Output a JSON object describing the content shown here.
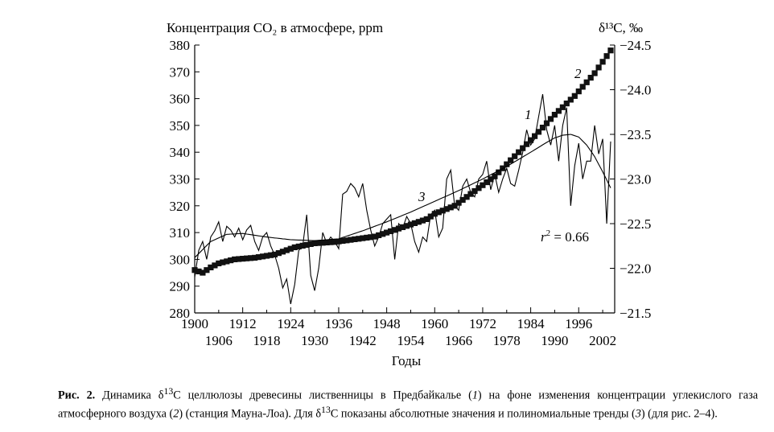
{
  "chart_data": {
    "type": "line",
    "title_left": "Концентрация CO₂ в атмосфере, ppm",
    "title_right": "δ¹³C, ‰",
    "xlabel": "Годы",
    "x_ticks_top": [
      "1900",
      "1912",
      "1924",
      "1936",
      "1948",
      "1960",
      "1972",
      "1984",
      "1996"
    ],
    "x_ticks_bottom": [
      "1906",
      "1918",
      "1930",
      "1942",
      "1954",
      "1966",
      "1978",
      "1990",
      "2002"
    ],
    "xlim": [
      1900,
      2005
    ],
    "ylim_left": [
      280,
      380
    ],
    "yticks_left": [
      "280",
      "290",
      "300",
      "310",
      "320",
      "330",
      "340",
      "350",
      "360",
      "370",
      "380"
    ],
    "ylim_right": [
      -21.5,
      -24.5
    ],
    "yticks_right": [
      "−21.5",
      "−22.0",
      "−22.5",
      "−23.0",
      "−23.5",
      "−24.0",
      "−24.5"
    ],
    "annotations": {
      "series1": "1",
      "series2": "2",
      "series3": "3",
      "r2_prefix": "r",
      "r2_exp": "2",
      "r2_value": " = 0.66"
    },
    "series": [
      {
        "id": "1",
        "style": "thin-line",
        "axis": "right",
        "x": [
          1900,
          1901,
          1902,
          1903,
          1904,
          1905,
          1906,
          1907,
          1908,
          1909,
          1910,
          1911,
          1912,
          1913,
          1914,
          1915,
          1916,
          1917,
          1918,
          1919,
          1920,
          1921,
          1922,
          1923,
          1924,
          1925,
          1926,
          1927,
          1928,
          1929,
          1930,
          1931,
          1932,
          1933,
          1934,
          1935,
          1936,
          1937,
          1938,
          1939,
          1940,
          1941,
          1942,
          1943,
          1944,
          1945,
          1946,
          1947,
          1948,
          1949,
          1950,
          1951,
          1952,
          1953,
          1954,
          1955,
          1956,
          1957,
          1958,
          1959,
          1960,
          1961,
          1962,
          1963,
          1964,
          1965,
          1966,
          1967,
          1968,
          1969,
          1970,
          1971,
          1972,
          1973,
          1974,
          1975,
          1976,
          1977,
          1978,
          1979,
          1980,
          1981,
          1982,
          1983,
          1984,
          1985,
          1986,
          1987,
          1988,
          1989,
          1990,
          1991,
          1992,
          1993,
          1994,
          1995,
          1996,
          1997,
          1998,
          1999,
          2000,
          2001,
          2002,
          2003,
          2004
        ],
        "y": [
          -21.9,
          -22.2,
          -22.3,
          -22.1,
          -22.35,
          -22.42,
          -22.52,
          -22.3,
          -22.47,
          -22.43,
          -22.35,
          -22.45,
          -22.32,
          -22.43,
          -22.48,
          -22.3,
          -22.2,
          -22.35,
          -22.4,
          -22.25,
          -22.15,
          -22.0,
          -21.78,
          -21.88,
          -21.6,
          -21.82,
          -22.2,
          -22.25,
          -22.6,
          -21.92,
          -21.75,
          -22.0,
          -22.4,
          -22.28,
          -22.35,
          -22.3,
          -22.22,
          -22.83,
          -22.86,
          -22.95,
          -22.9,
          -22.8,
          -22.95,
          -22.65,
          -22.43,
          -22.25,
          -22.35,
          -22.5,
          -22.55,
          -22.6,
          -22.1,
          -22.5,
          -22.45,
          -22.58,
          -22.5,
          -22.3,
          -22.18,
          -22.35,
          -22.3,
          -22.6,
          -22.65,
          -22.35,
          -22.45,
          -23.0,
          -23.1,
          -22.7,
          -22.65,
          -22.92,
          -23.0,
          -22.85,
          -22.8,
          -23.0,
          -23.05,
          -23.2,
          -22.88,
          -23.05,
          -22.85,
          -23.0,
          -23.12,
          -22.95,
          -22.92,
          -23.1,
          -23.3,
          -23.55,
          -23.38,
          -23.45,
          -23.7,
          -23.95,
          -23.55,
          -23.38,
          -23.6,
          -23.2,
          -23.6,
          -23.8,
          -22.7,
          -23.15,
          -23.4,
          -23.0,
          -23.2,
          -23.2,
          -23.6,
          -23.28,
          -23.45,
          -22.5,
          -23.42
        ],
        "points": [
          [
            1900,
            -21.9
          ],
          [
            1901,
            -22.2
          ],
          [
            1902,
            -22.3
          ],
          [
            1903,
            -22.1
          ],
          [
            1904,
            -22.35
          ],
          [
            1905,
            -22.42
          ],
          [
            1906,
            -22.52
          ],
          [
            1907,
            -22.3
          ],
          [
            1908,
            -22.47
          ],
          [
            1909,
            -22.43
          ],
          [
            1910,
            -22.35
          ],
          [
            1911,
            -22.45
          ],
          [
            1912,
            -22.32
          ],
          [
            1913,
            -22.43
          ],
          [
            1914,
            -22.48
          ],
          [
            1915,
            -22.3
          ],
          [
            1916,
            -22.2
          ],
          [
            1917,
            -22.35
          ],
          [
            1918,
            -22.4
          ],
          [
            1919,
            -22.25
          ],
          [
            1920,
            -22.15
          ],
          [
            1921,
            -22.0
          ],
          [
            1922,
            -21.78
          ],
          [
            1923,
            -21.88
          ],
          [
            1924,
            -21.6
          ],
          [
            1925,
            -21.82
          ],
          [
            1926,
            -22.2
          ],
          [
            1927,
            -22.25
          ],
          [
            1928,
            -22.6
          ],
          [
            1929,
            -21.92
          ],
          [
            1930,
            -21.75
          ],
          [
            1931,
            -22.0
          ],
          [
            1932,
            -22.4
          ],
          [
            1933,
            -22.28
          ],
          [
            1934,
            -22.35
          ],
          [
            1935,
            -22.3
          ],
          [
            1936,
            -22.22
          ],
          [
            1937,
            -22.83
          ],
          [
            1938,
            -22.86
          ],
          [
            1939,
            -22.95
          ],
          [
            1940,
            -22.9
          ],
          [
            1941,
            -22.8
          ],
          [
            1942,
            -22.95
          ],
          [
            1943,
            -22.65
          ],
          [
            1944,
            -22.43
          ],
          [
            1945,
            -22.25
          ],
          [
            1946,
            -22.35
          ],
          [
            1947,
            -22.5
          ],
          [
            1948,
            -22.55
          ],
          [
            1949,
            -22.6
          ],
          [
            1950,
            -22.1
          ],
          [
            1951,
            -22.5
          ],
          [
            1952,
            -22.45
          ],
          [
            1953,
            -22.58
          ],
          [
            1954,
            -22.5
          ],
          [
            1955,
            -22.3
          ],
          [
            1956,
            -22.18
          ],
          [
            1957,
            -22.35
          ],
          [
            1958,
            -22.3
          ],
          [
            1959,
            -22.6
          ],
          [
            1960,
            -22.65
          ],
          [
            1961,
            -22.35
          ],
          [
            1962,
            -22.45
          ],
          [
            1963,
            -23.0
          ],
          [
            1964,
            -23.1
          ],
          [
            1965,
            -22.7
          ],
          [
            1966,
            -22.65
          ],
          [
            1967,
            -22.92
          ],
          [
            1968,
            -23.0
          ],
          [
            1969,
            -22.85
          ],
          [
            1970,
            -22.8
          ],
          [
            1971,
            -23.0
          ],
          [
            1972,
            -23.05
          ],
          [
            1973,
            -23.2
          ],
          [
            1974,
            -22.88
          ],
          [
            1975,
            -23.05
          ],
          [
            1976,
            -22.85
          ],
          [
            1977,
            -23.0
          ],
          [
            1978,
            -23.12
          ],
          [
            1979,
            -22.95
          ],
          [
            1980,
            -22.92
          ],
          [
            1981,
            -23.1
          ],
          [
            1982,
            -23.3
          ],
          [
            1983,
            -23.55
          ],
          [
            1984,
            -23.38
          ],
          [
            1985,
            -23.45
          ],
          [
            1986,
            -23.7
          ],
          [
            1987,
            -23.95
          ],
          [
            1988,
            -23.55
          ],
          [
            1989,
            -23.38
          ],
          [
            1990,
            -23.6
          ],
          [
            1991,
            -23.2
          ],
          [
            1992,
            -23.6
          ],
          [
            1993,
            -23.8
          ],
          [
            1994,
            -22.7
          ],
          [
            1995,
            -23.15
          ],
          [
            1996,
            -23.4
          ],
          [
            1997,
            -23.0
          ],
          [
            1998,
            -23.2
          ],
          [
            1999,
            -23.2
          ],
          [
            2000,
            -23.6
          ],
          [
            2001,
            -23.28
          ],
          [
            2002,
            -23.45
          ],
          [
            2003,
            -22.5
          ],
          [
            2004,
            -23.42
          ]
        ]
      },
      {
        "id": "2",
        "style": "square-markers",
        "axis": "left",
        "knots": [
          [
            1900,
            296
          ],
          [
            1902,
            295
          ],
          [
            1904,
            297
          ],
          [
            1906,
            298.5
          ],
          [
            1910,
            300
          ],
          [
            1915,
            300.6
          ],
          [
            1920,
            301.8
          ],
          [
            1925,
            304.5
          ],
          [
            1930,
            306
          ],
          [
            1935,
            306.5
          ],
          [
            1940,
            307.5
          ],
          [
            1945,
            308.5
          ],
          [
            1950,
            311
          ],
          [
            1955,
            313.5
          ],
          [
            1958,
            315
          ],
          [
            1960,
            317
          ],
          [
            1965,
            320
          ],
          [
            1970,
            325.5
          ],
          [
            1975,
            331
          ],
          [
            1980,
            338.5
          ],
          [
            1985,
            346
          ],
          [
            1990,
            354
          ],
          [
            1995,
            361
          ],
          [
            2000,
            369.5
          ],
          [
            2004,
            378
          ]
        ]
      },
      {
        "id": "3",
        "style": "smooth-trend",
        "axis": "right",
        "knots": [
          [
            1900,
            -22.12
          ],
          [
            1904,
            -22.3
          ],
          [
            1908,
            -22.38
          ],
          [
            1912,
            -22.39
          ],
          [
            1918,
            -22.35
          ],
          [
            1924,
            -22.32
          ],
          [
            1930,
            -22.31
          ],
          [
            1936,
            -22.33
          ],
          [
            1942,
            -22.42
          ],
          [
            1948,
            -22.52
          ],
          [
            1954,
            -22.63
          ],
          [
            1960,
            -22.75
          ],
          [
            1966,
            -22.87
          ],
          [
            1972,
            -23.0
          ],
          [
            1978,
            -23.14
          ],
          [
            1984,
            -23.3
          ],
          [
            1988,
            -23.41
          ],
          [
            1990,
            -23.46
          ],
          [
            1992,
            -23.49
          ],
          [
            1994,
            -23.5
          ],
          [
            1996,
            -23.47
          ],
          [
            1998,
            -23.38
          ],
          [
            2000,
            -23.25
          ],
          [
            2002,
            -23.08
          ],
          [
            2004,
            -22.9
          ]
        ]
      }
    ]
  },
  "caption": {
    "label": "Рис. 2.",
    "text_1": " Динамика δ",
    "sup_1": "13",
    "text_2": "C целлюлозы древесины лиственницы в Предбайкалье (",
    "ref_1": "1",
    "text_3": ") на фоне изменения концентрации углекислого газа атмосферного воздуха (",
    "ref_2": "2",
    "text_4": ") (станция Мауна-Лоа). Для δ",
    "sup_2": "13",
    "text_5": "C показаны абсолютные значения и полиномиальные тренды (",
    "ref_3": "3",
    "text_6": ") (для рис. 2–4)."
  }
}
